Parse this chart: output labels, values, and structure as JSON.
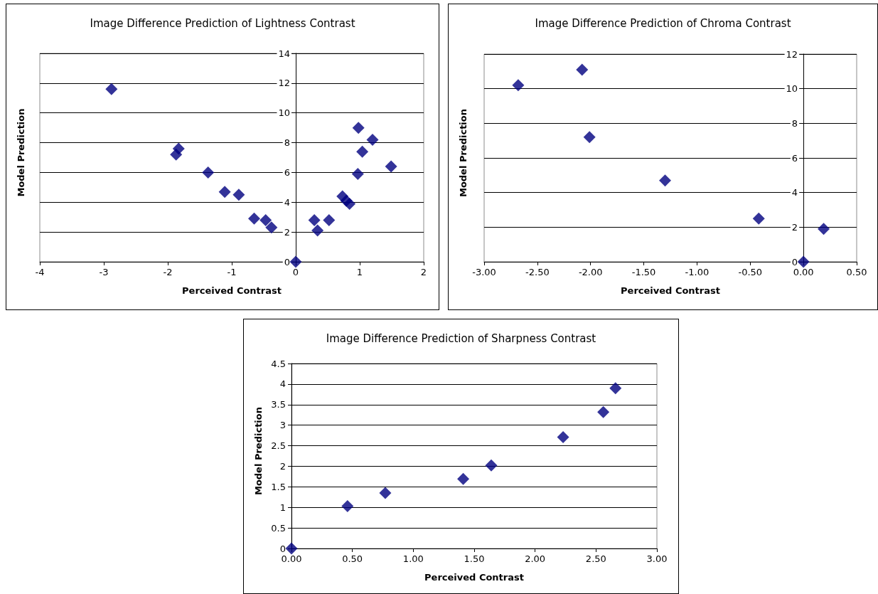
{
  "chart_data": [
    {
      "type": "scatter",
      "title": "Image Difference Prediction of Lightness Contrast",
      "xlabel": "Perceived Contrast",
      "ylabel": "Model Prediction",
      "marker": "diamond",
      "grid": "y",
      "color": "#000080",
      "x": [
        -2.88,
        -1.87,
        -1.83,
        -1.37,
        -1.11,
        -0.89,
        -0.65,
        -0.47,
        -0.38,
        0,
        0.29,
        0.34,
        0.52,
        0.73,
        0.79,
        0.84,
        0.98,
        0.97,
        1.04,
        1.2,
        1.49
      ],
      "values": [
        11.6,
        7.2,
        7.6,
        6.0,
        4.7,
        4.5,
        2.9,
        2.8,
        2.3,
        0,
        2.8,
        2.1,
        2.8,
        4.4,
        4.1,
        3.9,
        9.0,
        5.9,
        7.4,
        8.2,
        6.4
      ],
      "xlim": [
        -4,
        2
      ],
      "xticks": [
        -4,
        -3,
        -2,
        -1,
        0,
        1,
        2
      ],
      "ylim": [
        0,
        14
      ],
      "yticks": [
        0,
        2,
        4,
        6,
        8,
        10,
        12,
        14
      ]
    },
    {
      "type": "scatter",
      "title": "Image Difference Prediction of Chroma Contrast",
      "xlabel": "Perceived Contrast",
      "ylabel": "Model Prediction",
      "marker": "diamond",
      "grid": "y",
      "color": "#000080",
      "x": [
        -2.68,
        -2.08,
        -2.01,
        -1.3,
        -0.42,
        0,
        0.19
      ],
      "values": [
        10.2,
        11.1,
        7.2,
        4.7,
        2.5,
        0,
        1.9
      ],
      "xlim": [
        -3,
        0.5
      ],
      "xticks": [
        {
          "value": -3,
          "label": "-3.00"
        },
        {
          "value": -2.5,
          "label": "-2.50"
        },
        {
          "value": -2,
          "label": "-2.00"
        },
        {
          "value": -1.5,
          "label": "-1.50"
        },
        {
          "value": -1,
          "label": "-1.00"
        },
        {
          "value": -0.5,
          "label": "-0.50"
        },
        {
          "value": 0,
          "label": "0.00"
        },
        {
          "value": 0.5,
          "label": "0.50"
        }
      ],
      "ylim": [
        0,
        12
      ],
      "yticks": [
        0,
        2,
        4,
        6,
        8,
        10,
        12
      ]
    },
    {
      "type": "scatter",
      "title": "Image Difference Prediction of Sharpness Contrast",
      "xlabel": "Perceived Contrast",
      "ylabel": "Model Prediction",
      "marker": "diamond",
      "grid": "y",
      "color": "#000080",
      "x": [
        0,
        0.46,
        0.77,
        1.41,
        1.64,
        2.23,
        2.56,
        2.66
      ],
      "values": [
        0,
        1.03,
        1.35,
        1.69,
        2.02,
        2.71,
        3.32,
        3.9
      ],
      "xlim": [
        0,
        3
      ],
      "xticks": [
        {
          "value": 0,
          "label": "0.00"
        },
        {
          "value": 0.5,
          "label": "0.50"
        },
        {
          "value": 1,
          "label": "1.00"
        },
        {
          "value": 1.5,
          "label": "1.50"
        },
        {
          "value": 2,
          "label": "2.00"
        },
        {
          "value": 2.5,
          "label": "2.50"
        },
        {
          "value": 3,
          "label": "3.00"
        }
      ],
      "ylim": [
        0,
        4.5
      ],
      "yticks": [
        0,
        0.5,
        1,
        1.5,
        2,
        2.5,
        3,
        3.5,
        4,
        4.5
      ]
    }
  ]
}
